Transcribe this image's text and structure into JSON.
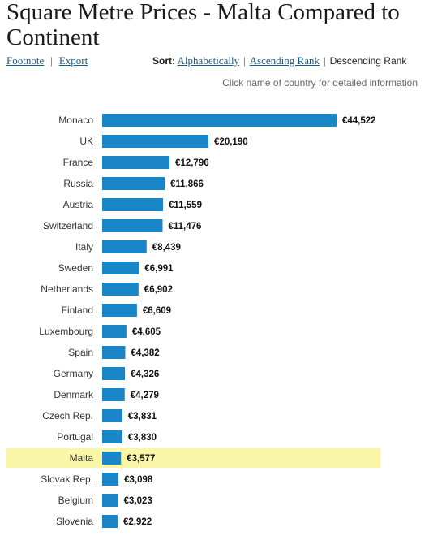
{
  "header": {
    "title": "Square Metre Prices - Malta Compared to Continent"
  },
  "toolbar": {
    "footnote_label": "Footnote",
    "export_label": "Export",
    "sort_label": "Sort:",
    "sort_alpha": "Alphabetically",
    "sort_ascending": "Ascending Rank",
    "sort_descending": "Descending Rank",
    "separator": "|"
  },
  "hint": "Click name of country for detailed information",
  "colors": {
    "bar": "#1a86c8",
    "highlight": "#faf6a8"
  },
  "chart_data": {
    "type": "bar",
    "orientation": "horizontal",
    "currency_prefix": "€",
    "highlight": "Malta",
    "categories": [
      "Monaco",
      "UK",
      "France",
      "Russia",
      "Austria",
      "Switzerland",
      "Italy",
      "Sweden",
      "Netherlands",
      "Finland",
      "Luxembourg",
      "Spain",
      "Germany",
      "Denmark",
      "Czech Rep.",
      "Portugal",
      "Malta",
      "Slovak Rep.",
      "Belgium",
      "Slovenia"
    ],
    "values": [
      44522,
      20190,
      12796,
      11866,
      11559,
      11476,
      8439,
      6991,
      6902,
      6609,
      4605,
      4382,
      4326,
      4279,
      3831,
      3830,
      3577,
      3098,
      3023,
      2922
    ],
    "labels": [
      "€44,522",
      "€20,190",
      "€12,796",
      "€11,866",
      "€11,559",
      "€11,476",
      "€8,439",
      "€6,991",
      "€6,902",
      "€6,609",
      "€4,605",
      "€4,382",
      "€4,326",
      "€4,279",
      "€3,831",
      "€3,830",
      "€3,577",
      "€3,098",
      "€3,023",
      "€2,922"
    ]
  }
}
